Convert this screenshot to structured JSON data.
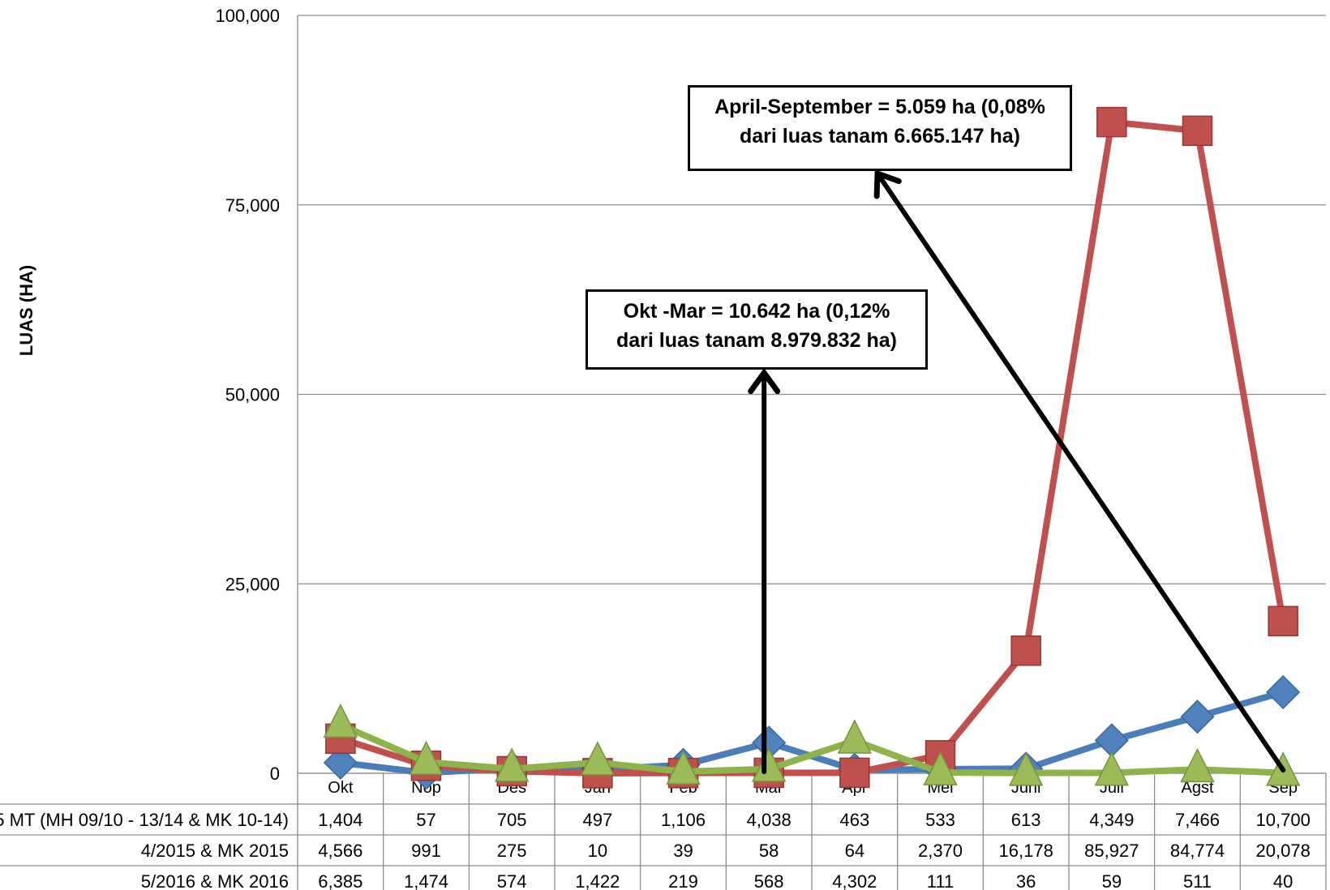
{
  "chart_data": {
    "type": "line",
    "title": "",
    "xlabel": "",
    "ylabel": "LUAS (HA)",
    "ylim": [
      0,
      100000
    ],
    "yticks": [
      "0",
      "25,000",
      "50,000",
      "75,000",
      "100,000"
    ],
    "grid": true,
    "categories": [
      "Okt",
      "Nop",
      "Des",
      "Jan",
      "Feb",
      "Mar",
      "Apr",
      "Mei",
      "Juni",
      "Juli",
      "Agst",
      "Sep"
    ],
    "series": [
      {
        "name": "5 MT (MH 09/10 - 13/14 & MK 10-14)",
        "color": "#4a7ebb",
        "marker": "diamond",
        "marker_color": "#4f81bd",
        "values": [
          1404,
          57,
          705,
          497,
          1106,
          4038,
          463,
          533,
          613,
          4349,
          7466,
          10700
        ],
        "labels": [
          "1,404",
          "57",
          "705",
          "497",
          "1,106",
          "4,038",
          "463",
          "533",
          "613",
          "4,349",
          "7,466",
          "10,700"
        ]
      },
      {
        "name": "4/2015 & MK 2015",
        "color": "#c0504d",
        "marker": "square",
        "marker_color": "#c0504d",
        "values": [
          4566,
          991,
          275,
          10,
          39,
          58,
          64,
          2370,
          16178,
          85927,
          84774,
          20078
        ],
        "labels": [
          "4,566",
          "991",
          "275",
          "10",
          "39",
          "58",
          "64",
          "2,370",
          "16,178",
          "85,927",
          "84,774",
          "20,078"
        ]
      },
      {
        "name": "5/2016 & MK 2016",
        "color": "#8eb34a",
        "marker": "triangle",
        "marker_color": "#9bbb59",
        "values": [
          6385,
          1474,
          574,
          1422,
          219,
          568,
          4302,
          111,
          36,
          59,
          511,
          40
        ],
        "labels": [
          "6,385",
          "1,474",
          "574",
          "1,422",
          "219",
          "568",
          "4,302",
          "111",
          "36",
          "59",
          "511",
          "40"
        ]
      }
    ],
    "annotations": [
      {
        "line1": "Okt -Mar = 10.642 ha (0,12%",
        "line2": "dari luas tanam 8.979.832 ha)"
      },
      {
        "line1": "April-September = 5.059 ha (0,08%",
        "line2": "dari luas tanam 6.665.147 ha)"
      }
    ]
  }
}
